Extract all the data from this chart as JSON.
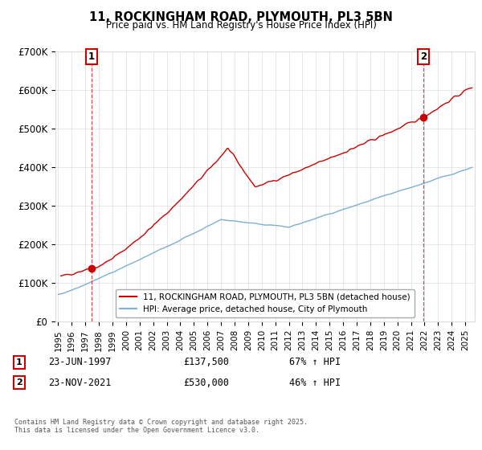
{
  "title": "11, ROCKINGHAM ROAD, PLYMOUTH, PL3 5BN",
  "subtitle": "Price paid vs. HM Land Registry's House Price Index (HPI)",
  "ylim": [
    0,
    700000
  ],
  "yticks": [
    0,
    100000,
    200000,
    300000,
    400000,
    500000,
    600000,
    700000
  ],
  "ytick_labels": [
    "£0",
    "£100K",
    "£200K",
    "£300K",
    "£400K",
    "£500K",
    "£600K",
    "£700K"
  ],
  "xlim_start": 1994.8,
  "xlim_end": 2025.7,
  "red_line_color": "#cc0000",
  "blue_line_color": "#7bafd4",
  "grid_color": "#dddddd",
  "sale1_year": 1997.47,
  "sale1_price": 137500,
  "sale2_year": 2021.9,
  "sale2_price": 530000,
  "legend_line1": "11, ROCKINGHAM ROAD, PLYMOUTH, PL3 5BN (detached house)",
  "legend_line2": "HPI: Average price, detached house, City of Plymouth",
  "annotation1_date": "23-JUN-1997",
  "annotation1_price": "£137,500",
  "annotation1_hpi": "67% ↑ HPI",
  "annotation2_date": "23-NOV-2021",
  "annotation2_price": "£530,000",
  "annotation2_hpi": "46% ↑ HPI",
  "footnote": "Contains HM Land Registry data © Crown copyright and database right 2025.\nThis data is licensed under the Open Government Licence v3.0.",
  "bg_color": "#ffffff"
}
